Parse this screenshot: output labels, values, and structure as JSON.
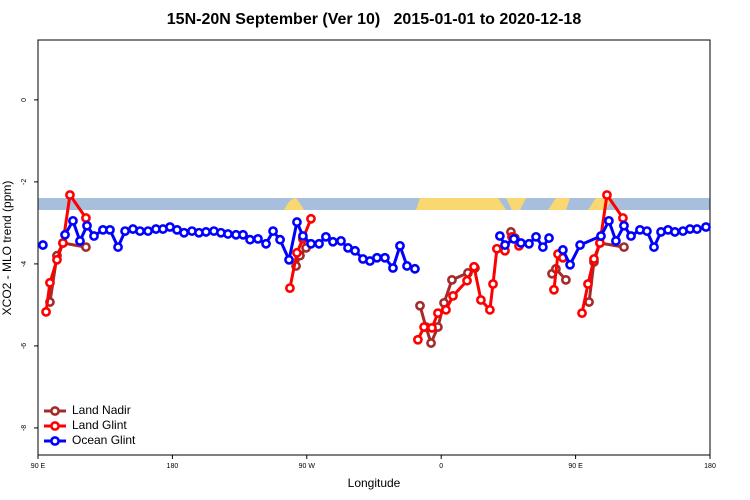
{
  "chart_data": {
    "type": "line",
    "title": "15N-20N September (Ver 10)   2015-01-01 to 2020-12-18",
    "x_label": "Longitude",
    "y_label": "XCO2 - MLO trend (ppm)",
    "xlim": [
      90,
      540
    ],
    "ylim": [
      -8.66,
      1.46
    ],
    "xticks": [
      {
        "value": 90,
        "label": "90 E"
      },
      {
        "value": 180,
        "label": "180"
      },
      {
        "value": 270,
        "label": "90 W"
      },
      {
        "value": 360,
        "label": "0"
      },
      {
        "value": 450,
        "label": "90 E"
      },
      {
        "value": 540,
        "label": "180"
      }
    ],
    "yticks": [
      0,
      -2,
      -4,
      -6,
      -8
    ],
    "legend": "bottom-left",
    "series": [
      {
        "name": "Land Nadir",
        "color": "#a52a2a",
        "x": [
          98.0,
          102.7,
          106.7,
          122.1,
          null,
          262.8,
          265.4,
          269.5,
          null,
          345.8,
          349.8,
          353.2,
          357.8,
          361.9,
          367.2,
          377.9,
          382.6,
          null,
          406.7,
          409.4,
          null,
          434.2,
          436.8,
          443.5,
          null,
          459.0,
          462.3,
          466.3,
          482.4
        ],
        "values": [
          -4.93,
          -3.8,
          -3.49,
          -3.59,
          null,
          -4.05,
          -3.8,
          -3.61,
          null,
          -5.02,
          -5.54,
          -5.93,
          -5.54,
          -4.95,
          -4.39,
          -4.22,
          -4.1,
          null,
          -3.22,
          -3.37,
          null,
          -4.24,
          -4.12,
          -4.39,
          null,
          -4.93,
          -3.95,
          -3.49,
          -3.59
        ]
      },
      {
        "name": "Land Glint",
        "color": "#ff0000",
        "x": [
          95.4,
          98.0,
          102.7,
          106.7,
          111.4,
          122.1,
          null,
          258.7,
          263.4,
          267.4,
          272.8,
          null,
          344.4,
          348.5,
          353.8,
          357.8,
          363.2,
          367.9,
          377.3,
          382.0,
          386.6,
          392.6,
          394.7,
          397.3,
          402.7,
          407.4,
          412.1,
          null,
          435.5,
          438.2,
          441.5,
          null,
          454.3,
          458.3,
          462.3,
          466.3,
          471.0,
          481.7
        ],
        "values": [
          -5.17,
          -4.46,
          -3.9,
          -3.49,
          -2.32,
          -2.88,
          null,
          -4.59,
          -3.73,
          -3.39,
          -2.9,
          null,
          -5.85,
          -5.54,
          -5.56,
          -5.2,
          -5.12,
          -4.78,
          -4.41,
          -4.07,
          -4.88,
          -5.12,
          -4.49,
          -3.63,
          -3.68,
          -3.34,
          -3.56,
          null,
          -4.63,
          -3.76,
          -3.85,
          null,
          -5.2,
          -4.49,
          -3.88,
          -3.49,
          -2.32,
          -2.88
        ]
      },
      {
        "name": "Ocean Glint",
        "color": "#0000ff",
        "x": [
          93.3,
          null,
          108.1,
          113.4,
          118.1,
          122.8,
          127.5,
          133.5,
          138.2,
          143.6,
          148.3,
          153.6,
          158.3,
          163.7,
          169.0,
          173.7,
          178.4,
          183.1,
          187.8,
          193.1,
          197.8,
          202.5,
          207.8,
          212.5,
          217.2,
          222.6,
          227.3,
          232.0,
          237.3,
          242.7,
          247.4,
          252.1,
          258.1,
          263.4,
          267.4,
          272.8,
          278.2,
          282.8,
          287.5,
          292.9,
          297.6,
          302.3,
          307.6,
          312.3,
          317.0,
          322.3,
          327.7,
          332.4,
          337.1,
          342.4,
          null,
          399.3,
          402.7,
          408.7,
          413.4,
          418.8,
          423.5,
          428.1,
          432.2,
          null,
          441.5,
          446.3,
          453.0,
          467.0,
          472.3,
          477.0,
          482.4,
          487.1,
          493.1,
          497.8,
          502.5,
          507.2,
          511.9,
          516.5,
          521.9,
          526.6,
          531.3,
          537.3
        ],
        "values": [
          -3.54,
          null,
          -3.29,
          -2.95,
          -3.44,
          -3.07,
          -3.32,
          -3.17,
          -3.17,
          -3.59,
          -3.2,
          -3.15,
          -3.2,
          -3.2,
          -3.15,
          -3.15,
          -3.1,
          -3.17,
          -3.24,
          -3.2,
          -3.24,
          -3.22,
          -3.2,
          -3.24,
          -3.27,
          -3.29,
          -3.29,
          -3.41,
          -3.39,
          -3.51,
          -3.2,
          -3.41,
          -3.9,
          -2.98,
          -3.32,
          -3.51,
          -3.51,
          -3.34,
          -3.46,
          -3.44,
          -3.61,
          -3.68,
          -3.88,
          -3.93,
          -3.85,
          -3.85,
          -4.1,
          -3.56,
          -4.05,
          -4.12,
          null,
          -3.32,
          -3.54,
          -3.39,
          -3.49,
          -3.51,
          -3.34,
          -3.59,
          -3.37,
          null,
          -3.66,
          -4.02,
          -3.54,
          -3.32,
          -2.95,
          -3.44,
          -3.07,
          -3.32,
          -3.17,
          -3.2,
          -3.59,
          -3.22,
          -3.17,
          -3.22,
          -3.2,
          -3.15,
          -3.15,
          -3.1
        ]
      }
    ]
  }
}
